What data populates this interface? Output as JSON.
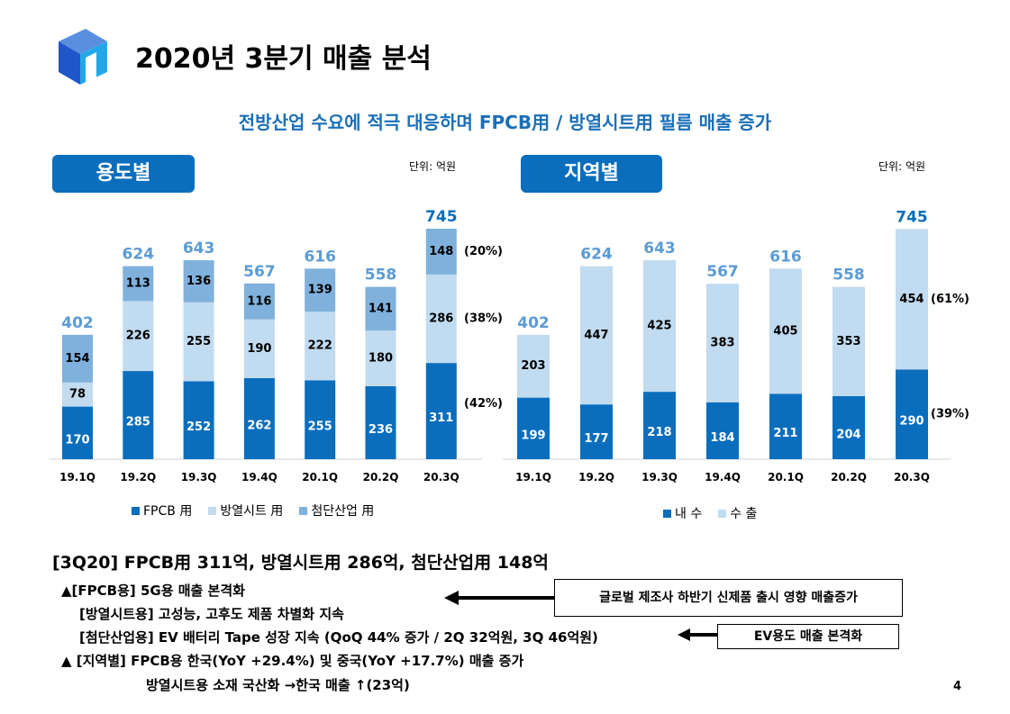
{
  "header": {
    "title": "2020년 3분기 매출 분석",
    "subtitle": "전방산업 수요에 적극 대응하며 FPCB用 / 방열시트用 필름 매출 증가"
  },
  "colors": {
    "dark": "#0a6ebd",
    "light": "#c1dbf0",
    "mid": "#7fb1dc",
    "total": "#5b9bd5",
    "pill": "#0a6ebd",
    "subtitle": "#1a6fb8"
  },
  "chart_data": [
    {
      "type": "bar",
      "stacked": true,
      "title": "용도별",
      "unit": "단위: 억원",
      "categories": [
        "19.1Q",
        "19.2Q",
        "19.3Q",
        "19.4Q",
        "20.1Q",
        "20.2Q",
        "20.3Q"
      ],
      "series": [
        {
          "name": "FPCB 用",
          "values": [
            170,
            285,
            252,
            262,
            255,
            236,
            311
          ]
        },
        {
          "name": "방열시트 用",
          "values": [
            78,
            226,
            255,
            190,
            222,
            180,
            286
          ]
        },
        {
          "name": "첨단산업 用",
          "values": [
            154,
            113,
            136,
            116,
            139,
            141,
            148
          ]
        }
      ],
      "totals": [
        402,
        624,
        643,
        567,
        616,
        558,
        745
      ],
      "share_labels": [
        "(42%)",
        "(38%)",
        "(20%)"
      ],
      "ylim": [
        0,
        745
      ]
    },
    {
      "type": "bar",
      "stacked": true,
      "title": "지역별",
      "unit": "단위: 억원",
      "categories": [
        "19.1Q",
        "19.2Q",
        "19.3Q",
        "19.4Q",
        "20.1Q",
        "20.2Q",
        "20.3Q"
      ],
      "series": [
        {
          "name": "내 수",
          "values": [
            199,
            177,
            218,
            184,
            211,
            204,
            290
          ]
        },
        {
          "name": "수 출",
          "values": [
            203,
            447,
            425,
            383,
            405,
            353,
            454
          ]
        }
      ],
      "totals": [
        402,
        624,
        643,
        567,
        616,
        558,
        745
      ],
      "share_labels": [
        "(39%)",
        "(61%)"
      ],
      "ylim": [
        0,
        745
      ]
    }
  ],
  "summary": {
    "headline": "[3Q20] FPCB用 311억, 방열시트用 286억, 첨단산업用 148억",
    "lines": [
      "▲[FPCB용] 5G용 매출 본격화",
      "[방열시트용] 고성능, 고후도 제품 차별화 지속",
      "[첨단산업용] EV 배터리 Tape 성장 지속 (QoQ 44% 증가 / 2Q 32억원, 3Q 46억원)",
      "▲ [지역별] FPCB용 한국(YoY +29.4%) 및 중국(YoY +17.7%) 매출 증가",
      "방열시트용 소재 국산화 →한국 매출 ↑(23억)"
    ],
    "callout_1": "글로벌 제조사 하반기 신제품 출시 영향 매출증가",
    "callout_2": "EV용도 매출 본격화"
  },
  "page_number": "4"
}
